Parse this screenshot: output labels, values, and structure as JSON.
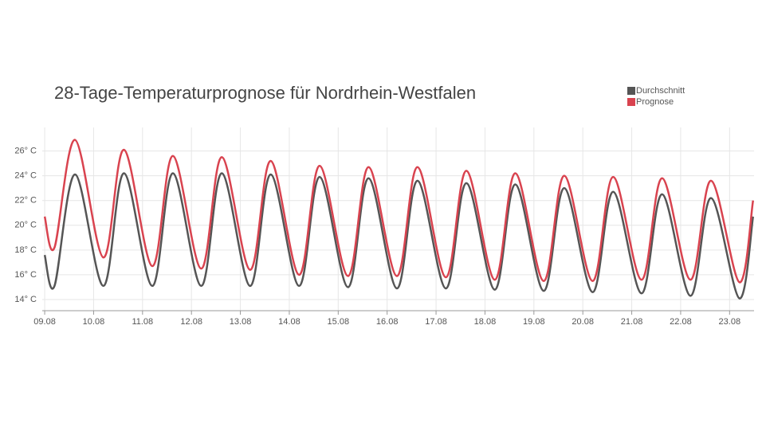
{
  "chart_data": {
    "type": "line",
    "title": "28-Tage-Temperaturprognose für Nordrhein-Westfalen",
    "x": [
      0,
      0.2,
      0.62,
      1.2,
      1.62,
      2.2,
      2.62,
      3.2,
      3.62,
      4.2,
      4.62,
      5.2,
      5.62,
      6.2,
      6.62,
      7.2,
      7.62,
      8.2,
      8.62,
      9.2,
      9.62,
      10.2,
      10.62,
      11.2,
      11.62,
      12.2,
      12.62,
      13.2,
      13.62,
      14.2,
      14.48
    ],
    "series": [
      {
        "name": "Durchschnitt",
        "color": "#555555",
        "values": [
          17.6,
          15.1,
          24.1,
          15.1,
          24.2,
          15.1,
          24.2,
          15.1,
          24.2,
          15.1,
          24.1,
          15.1,
          23.9,
          15.0,
          23.8,
          14.9,
          23.6,
          14.9,
          23.4,
          14.8,
          23.3,
          14.7,
          23.0,
          14.6,
          22.7,
          14.5,
          22.5,
          14.3,
          22.2,
          14.1,
          20.7
        ]
      },
      {
        "name": "Prognose",
        "color": "#d9434f",
        "values": [
          20.7,
          18.2,
          26.9,
          17.4,
          26.1,
          16.7,
          25.6,
          16.5,
          25.5,
          16.4,
          25.2,
          16.0,
          24.8,
          15.9,
          24.7,
          15.9,
          24.7,
          15.8,
          24.4,
          15.6,
          24.2,
          15.5,
          24.0,
          15.5,
          23.9,
          15.6,
          23.8,
          15.6,
          23.6,
          15.4,
          22.0
        ]
      }
    ],
    "xlim": [
      -0.05,
      14.5
    ],
    "xticks": [
      {
        "value": 0,
        "label": "09.08"
      },
      {
        "value": 1,
        "label": "10.08"
      },
      {
        "value": 2,
        "label": "11.08"
      },
      {
        "value": 3,
        "label": "12.08"
      },
      {
        "value": 4,
        "label": "13.08"
      },
      {
        "value": 5,
        "label": "14.08"
      },
      {
        "value": 6,
        "label": "15.08"
      },
      {
        "value": 7,
        "label": "16.08"
      },
      {
        "value": 8,
        "label": "17.08"
      },
      {
        "value": 9,
        "label": "18.08"
      },
      {
        "value": 10,
        "label": "19.08"
      },
      {
        "value": 11,
        "label": "20.08"
      },
      {
        "value": 12,
        "label": "21.08"
      },
      {
        "value": 13,
        "label": "22.08"
      },
      {
        "value": 14,
        "label": "23.08"
      }
    ],
    "ylim": [
      13.1,
      27.9
    ],
    "yticks": [
      {
        "value": 14,
        "label": "14° C"
      },
      {
        "value": 16,
        "label": "16° C"
      },
      {
        "value": 18,
        "label": "18° C"
      },
      {
        "value": 20,
        "label": "20° C"
      },
      {
        "value": 22,
        "label": "22° C"
      },
      {
        "value": 24,
        "label": "24° C"
      },
      {
        "value": 26,
        "label": "26° C"
      }
    ],
    "grid": true,
    "legend": "top-right"
  }
}
